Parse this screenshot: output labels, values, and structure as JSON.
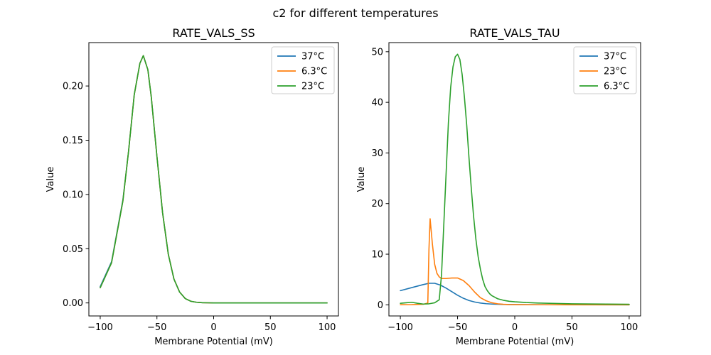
{
  "figure": {
    "suptitle": "c2 for different temperatures"
  },
  "chart_data": [
    {
      "type": "line",
      "title": "RATE_VALS_SS",
      "xlabel": "Membrane Potential (mV)",
      "ylabel": "Value",
      "xlim": [
        -110,
        110
      ],
      "ylim": [
        -0.012,
        0.24
      ],
      "xticks": [
        -100,
        -50,
        0,
        50,
        100
      ],
      "yticks": [
        0.0,
        0.05,
        0.1,
        0.15,
        0.2
      ],
      "yticklabels": [
        "0.00",
        "0.05",
        "0.10",
        "0.15",
        "0.20"
      ],
      "legend_position": "top-right",
      "series": [
        {
          "name": "37°C",
          "color": "#1f77b4",
          "x": [
            -100,
            -90,
            -80,
            -75,
            -70,
            -65,
            -62,
            -58,
            -55,
            -50,
            -45,
            -40,
            -35,
            -30,
            -25,
            -20,
            -15,
            -10,
            -5,
            0,
            20,
            50,
            100
          ],
          "y": [
            0.015,
            0.038,
            0.095,
            0.14,
            0.192,
            0.221,
            0.228,
            0.215,
            0.19,
            0.135,
            0.083,
            0.045,
            0.022,
            0.01,
            0.004,
            0.0015,
            0.0006,
            0.0002,
            0.0001,
            0.0,
            0.0,
            0.0,
            0.0
          ]
        },
        {
          "name": "6.3°C",
          "color": "#ff7f0e",
          "x": [
            -100,
            -90,
            -80,
            -75,
            -70,
            -65,
            -62,
            -58,
            -55,
            -50,
            -45,
            -40,
            -35,
            -30,
            -25,
            -20,
            -15,
            -10,
            -5,
            0,
            20,
            50,
            100
          ],
          "y": [
            0.014,
            0.037,
            0.094,
            0.14,
            0.192,
            0.221,
            0.228,
            0.215,
            0.19,
            0.135,
            0.083,
            0.045,
            0.022,
            0.01,
            0.004,
            0.0015,
            0.0006,
            0.0002,
            0.0001,
            0.0,
            0.0,
            0.0,
            0.0
          ]
        },
        {
          "name": "23°C",
          "color": "#2ca02c",
          "x": [
            -100,
            -90,
            -80,
            -75,
            -70,
            -65,
            -62,
            -58,
            -55,
            -50,
            -45,
            -40,
            -35,
            -30,
            -25,
            -20,
            -15,
            -10,
            -5,
            0,
            20,
            50,
            100
          ],
          "y": [
            0.014,
            0.037,
            0.094,
            0.14,
            0.192,
            0.221,
            0.228,
            0.215,
            0.19,
            0.135,
            0.083,
            0.045,
            0.022,
            0.01,
            0.004,
            0.0015,
            0.0006,
            0.0002,
            0.0001,
            0.0,
            0.0,
            0.0,
            0.0
          ]
        }
      ]
    },
    {
      "type": "line",
      "title": "RATE_VALS_TAU",
      "xlabel": "Membrane Potential (mV)",
      "ylabel": "Value",
      "xlim": [
        -110,
        110
      ],
      "ylim": [
        -2.2,
        51.8
      ],
      "xticks": [
        -100,
        -50,
        0,
        50,
        100
      ],
      "yticks": [
        0,
        10,
        20,
        30,
        40,
        50
      ],
      "yticklabels": [
        "0",
        "10",
        "20",
        "30",
        "40",
        "50"
      ],
      "legend_position": "top-right",
      "series": [
        {
          "name": "37°C",
          "color": "#1f77b4",
          "x": [
            -100,
            -90,
            -80,
            -75,
            -70,
            -65,
            -60,
            -55,
            -50,
            -45,
            -40,
            -35,
            -30,
            -25,
            -20,
            -10,
            0,
            20,
            50,
            100
          ],
          "y": [
            2.8,
            3.4,
            4.0,
            4.25,
            4.25,
            3.9,
            3.3,
            2.6,
            1.9,
            1.3,
            0.85,
            0.55,
            0.35,
            0.22,
            0.15,
            0.07,
            0.04,
            0.02,
            0.01,
            0.0
          ]
        },
        {
          "name": "23°C",
          "color": "#ff7f0e",
          "x": [
            -100,
            -90,
            -80,
            -76,
            -75,
            -74,
            -72,
            -70,
            -68,
            -66,
            -64,
            -60,
            -55,
            -50,
            -45,
            -40,
            -35,
            -30,
            -25,
            -20,
            -15,
            -10,
            -5,
            0,
            20,
            50,
            100
          ],
          "y": [
            0.02,
            0.03,
            0.1,
            0.35,
            11.0,
            17.0,
            12.0,
            8.0,
            6.2,
            5.5,
            5.2,
            5.2,
            5.3,
            5.3,
            4.8,
            3.8,
            2.5,
            1.4,
            0.8,
            0.4,
            0.2,
            0.1,
            0.05,
            0.03,
            0.01,
            0.0,
            0.0
          ]
        },
        {
          "name": "6.3°C",
          "color": "#2ca02c",
          "x": [
            -100,
            -95,
            -90,
            -85,
            -80,
            -75,
            -70,
            -66,
            -64,
            -62,
            -60,
            -58,
            -56,
            -54,
            -52,
            -50,
            -48,
            -46,
            -44,
            -42,
            -40,
            -38,
            -36,
            -34,
            -32,
            -30,
            -28,
            -26,
            -24,
            -22,
            -20,
            -15,
            -10,
            -5,
            0,
            10,
            20,
            50,
            100
          ],
          "y": [
            0.3,
            0.4,
            0.5,
            0.3,
            0.15,
            0.2,
            0.4,
            1.0,
            6.0,
            16.0,
            26.0,
            36.0,
            43.0,
            47.0,
            49.0,
            49.5,
            48.5,
            45.5,
            41.0,
            35.5,
            29.0,
            23.0,
            17.5,
            13.0,
            9.5,
            7.0,
            5.0,
            3.6,
            2.8,
            2.2,
            1.8,
            1.2,
            0.9,
            0.7,
            0.6,
            0.45,
            0.35,
            0.2,
            0.1
          ]
        }
      ]
    }
  ]
}
